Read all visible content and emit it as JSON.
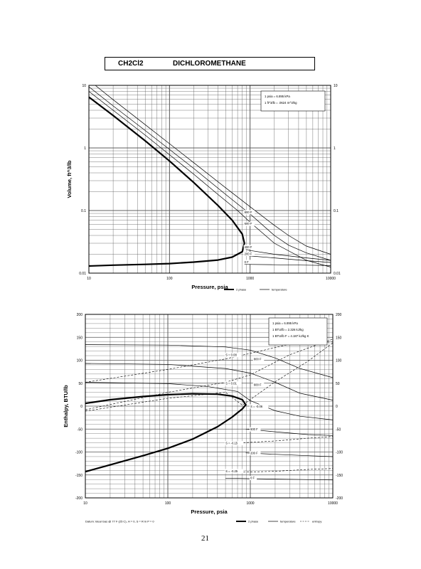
{
  "header": {
    "formula": "CH2Cl2",
    "name": "DICHLOROMETHANE"
  },
  "page_number": "21",
  "chart_data": [
    {
      "type": "line",
      "log_x": true,
      "log_y": true,
      "xlabel": "Pressure,  psia",
      "ylabel": "Volume, ft^3/lb",
      "xlim": [
        10,
        10000
      ],
      "ylim": [
        0.01,
        10
      ],
      "x_ticks": [
        "10",
        "100",
        "1000",
        "10000"
      ],
      "y_ticks": [
        "0.01",
        "0.1",
        "1",
        "10"
      ],
      "grid": true,
      "info_box": [
        "1 psia  =  6.895 kPa",
        "1 ft^3/lb  =  .0624 m^3/kg"
      ],
      "legend": [
        {
          "label": "2 phase",
          "style": "thick"
        },
        {
          "label": "temperature",
          "style": "thin"
        }
      ],
      "series": [
        {
          "role": "2-phase",
          "points": [
            [
              10,
              6.5
            ],
            [
              20,
              3.3
            ],
            [
              50,
              1.3
            ],
            [
              100,
              0.62
            ],
            [
              200,
              0.28
            ],
            [
              400,
              0.12
            ],
            [
              600,
              0.07
            ],
            [
              800,
              0.042
            ],
            [
              850,
              0.03
            ],
            [
              800,
              0.022
            ],
            [
              600,
              0.018
            ],
            [
              400,
              0.0162
            ],
            [
              200,
              0.015
            ],
            [
              100,
              0.0142
            ],
            [
              50,
              0.0138
            ],
            [
              20,
              0.0134
            ],
            [
              10,
              0.013
            ]
          ]
        },
        {
          "label": "",
          "points": [
            [
              10,
              8
            ],
            [
              20,
              4
            ],
            [
              50,
              1.6
            ],
            [
              100,
              0.78
            ],
            [
              200,
              0.38
            ],
            [
              400,
              0.18
            ],
            [
              700,
              0.1
            ],
            [
              1000,
              0.065
            ],
            [
              2000,
              0.03
            ],
            [
              5000,
              0.016
            ],
            [
              10000,
              0.0125
            ]
          ]
        },
        {
          "label": "",
          "points": [
            [
              10,
              9.5
            ],
            [
              20,
              4.7
            ],
            [
              50,
              1.9
            ],
            [
              100,
              0.95
            ],
            [
              200,
              0.47
            ],
            [
              500,
              0.18
            ],
            [
              1000,
              0.088
            ],
            [
              2000,
              0.04
            ],
            [
              3000,
              0.028
            ],
            [
              5000,
              0.021
            ],
            [
              10000,
              0.016
            ]
          ]
        },
        {
          "label": "",
          "points": [
            [
              12,
              10
            ],
            [
              20,
              5.9
            ],
            [
              50,
              2.35
            ],
            [
              100,
              1.17
            ],
            [
              200,
              0.58
            ],
            [
              500,
              0.23
            ],
            [
              1000,
              0.115
            ],
            [
              2000,
              0.058
            ],
            [
              3000,
              0.04
            ],
            [
              5000,
              0.027
            ],
            [
              10000,
              0.02
            ]
          ]
        },
        {
          "label": "400 F",
          "points": [
            [
              850,
              0.0245
            ],
            [
              1000,
              0.023
            ],
            [
              2000,
              0.02
            ],
            [
              5000,
              0.0175
            ],
            [
              10000,
              0.016
            ]
          ]
        },
        {
          "label": "200 F",
          "points": [
            [
              850,
              0.0192
            ],
            [
              1000,
              0.0188
            ],
            [
              2000,
              0.0175
            ],
            [
              5000,
              0.0158
            ],
            [
              10000,
              0.0148
            ]
          ]
        },
        {
          "label": "0 F",
          "points": [
            [
              850,
              0.0138
            ],
            [
              2000,
              0.0136
            ],
            [
              5000,
              0.0134
            ],
            [
              10000,
              0.0132
            ]
          ]
        }
      ],
      "series_labels": [
        {
          "text": "800 F",
          "x": 850,
          "y": 0.09
        },
        {
          "text": "600 F",
          "x": 850,
          "y": 0.059
        },
        {
          "text": "400 F",
          "x": 850,
          "y": 0.025
        },
        {
          "text": "200 F",
          "x": 850,
          "y": 0.0195
        },
        {
          "text": "0 F",
          "x": 850,
          "y": 0.0145
        }
      ]
    },
    {
      "type": "line",
      "log_x": true,
      "xlabel": "Pressure,  psia",
      "ylabel": "Enthalpy, BTU/lb",
      "xlim": [
        10,
        10000
      ],
      "ylim": [
        -200,
        200
      ],
      "x_ticks": [
        "10",
        "100",
        "1000",
        "10000"
      ],
      "y_ticks": [
        "200",
        "150",
        "100",
        "50",
        "0",
        "-50",
        "-100",
        "-150",
        "-200"
      ],
      "grid": true,
      "info_box": [
        "1 psia  =  6.895 kPa",
        "1 BTU/lb  =  2.326 kJ/kg",
        "1 BTU/lb F  =  4.187 kJ/kg K"
      ],
      "footnote": "Datum: Ideal Gas @ 77 F (25 C),  H = 0,  S = R ln P = 0",
      "legend": [
        {
          "label": "2 phase",
          "style": "thick"
        },
        {
          "label": "temperature",
          "style": "thin"
        },
        {
          "label": "entropy",
          "style": "dashed"
        }
      ],
      "series": [
        {
          "role": "2-phase",
          "points": [
            [
              10,
              -143
            ],
            [
              20,
              -128
            ],
            [
              50,
              -108
            ],
            [
              100,
              -92
            ],
            [
              200,
              -72
            ],
            [
              400,
              -45
            ],
            [
              600,
              -24
            ],
            [
              800,
              -6
            ],
            [
              880,
              3
            ],
            [
              800,
              14
            ],
            [
              600,
              22
            ],
            [
              400,
              26
            ],
            [
              200,
              27
            ],
            [
              100,
              25
            ],
            [
              50,
              21
            ],
            [
              20,
              14
            ],
            [
              10,
              6
            ]
          ]
        },
        {
          "label": "800 F",
          "style": "thin",
          "points": [
            [
              10,
              134
            ],
            [
              100,
              133
            ],
            [
              500,
              129
            ],
            [
              1000,
              122
            ],
            [
              2000,
              105
            ],
            [
              4000,
              82
            ],
            [
              10000,
              62
            ]
          ]
        },
        {
          "label": "600 F",
          "style": "thin",
          "points": [
            [
              10,
              93
            ],
            [
              100,
              91
            ],
            [
              500,
              82
            ],
            [
              1000,
              72
            ],
            [
              2000,
              52
            ],
            [
              4000,
              28
            ],
            [
              10000,
              13
            ]
          ]
        },
        {
          "label": "",
          "style": "thin",
          "points": [
            [
              10,
              52
            ],
            [
              100,
              49
            ],
            [
              300,
              43
            ],
            [
              700,
              32
            ],
            [
              1000,
              12
            ],
            [
              2000,
              -10
            ],
            [
              4000,
              -22
            ],
            [
              10000,
              -30
            ]
          ]
        },
        {
          "label": "400 F",
          "style": "thin",
          "points": [
            [
              880,
              -50
            ],
            [
              2000,
              -56
            ],
            [
              5000,
              -62
            ],
            [
              10000,
              -64
            ]
          ]
        },
        {
          "label": "200 F",
          "style": "thin",
          "points": [
            [
              880,
              -102
            ],
            [
              2000,
              -105
            ],
            [
              5000,
              -108
            ],
            [
              10000,
              -110
            ]
          ]
        },
        {
          "label": "0 F",
          "style": "thin",
          "points": [
            [
              500,
              -157
            ],
            [
              2000,
              -159
            ],
            [
              10000,
              -161
            ]
          ]
        },
        {
          "label": "S = -0.06",
          "style": "dashed",
          "points": [
            [
              10,
              -11
            ],
            [
              100,
              17
            ],
            [
              500,
              30
            ],
            [
              800,
              2
            ],
            [
              2000,
              53
            ],
            [
              5000,
              98
            ],
            [
              10000,
              138
            ]
          ]
        },
        {
          "label": "S = 0.01",
          "style": "dashed",
          "points": [
            [
              10,
              -8
            ],
            [
              100,
              30
            ],
            [
              500,
              52
            ],
            [
              1000,
              68
            ],
            [
              3000,
              112
            ],
            [
              10000,
              146
            ]
          ]
        },
        {
          "label": "S = 0.08",
          "style": "dashed",
          "points": [
            [
              10,
              52
            ],
            [
              100,
              80
            ],
            [
              500,
              103
            ],
            [
              1000,
              115
            ],
            [
              3000,
              135
            ],
            [
              10000,
              140
            ]
          ]
        },
        {
          "label": "S = -0.15",
          "style": "dashed",
          "points": [
            [
              500,
              -82
            ],
            [
              2000,
              -76
            ],
            [
              5000,
              -70
            ],
            [
              10000,
              -66
            ]
          ]
        },
        {
          "label": "S = -0.25",
          "style": "dashed",
          "points": [
            [
              500,
              -145
            ],
            [
              2000,
              -142
            ],
            [
              5000,
              -138
            ],
            [
              10000,
              -136
            ]
          ]
        }
      ],
      "series_labels": [
        {
          "text": "S = 0.08",
          "x": 500,
          "y": 109
        },
        {
          "text": "800 F",
          "x": 1100,
          "y": 100
        },
        {
          "text": "S = 0.01",
          "x": 500,
          "y": 47
        },
        {
          "text": "600 F",
          "x": 1100,
          "y": 44
        },
        {
          "text": "S = -0.06",
          "x": 1000,
          "y": -3
        },
        {
          "text": "600 F",
          "x": 1000,
          "y": -53
        },
        {
          "text": "S = -0.15",
          "x": 500,
          "y": -83
        },
        {
          "text": "200 F",
          "x": 1000,
          "y": -105
        },
        {
          "text": "S = -0.25",
          "x": 500,
          "y": -144
        },
        {
          "text": "0 F",
          "x": 1000,
          "y": -159
        }
      ]
    }
  ]
}
